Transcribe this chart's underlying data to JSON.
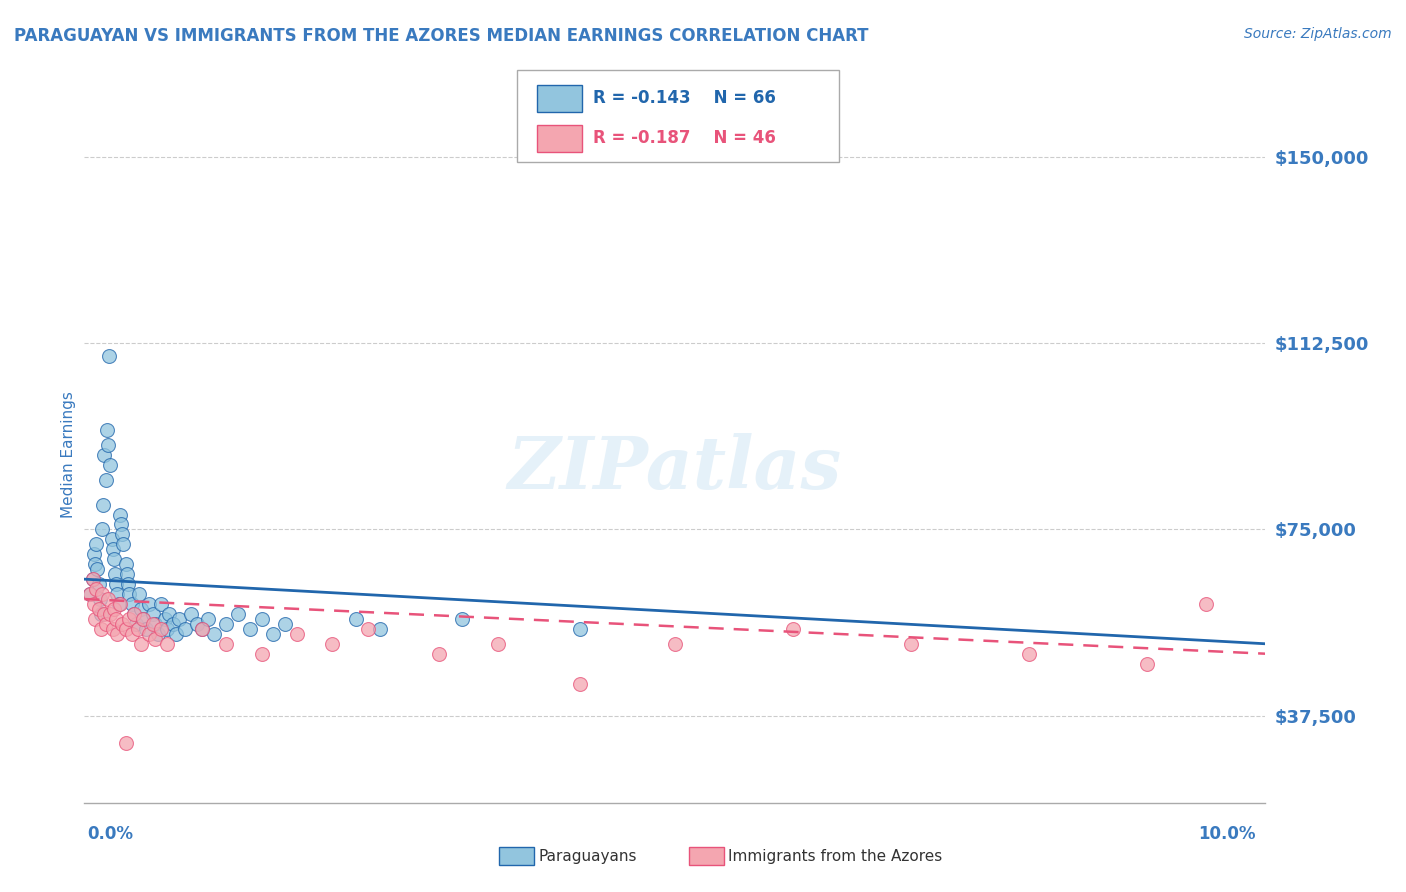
{
  "title": "PARAGUAYAN VS IMMIGRANTS FROM THE AZORES MEDIAN EARNINGS CORRELATION CHART",
  "source": "Source: ZipAtlas.com",
  "ylabel": "Median Earnings",
  "yticks": [
    37500,
    75000,
    112500,
    150000
  ],
  "ytick_labels": [
    "$37,500",
    "$75,000",
    "$112,500",
    "$150,000"
  ],
  "xlim": [
    0.0,
    10.0
  ],
  "ylim": [
    20000,
    160000
  ],
  "series1_label": "Paraguayans",
  "series2_label": "Immigrants from the Azores",
  "legend_r1": "R = -0.143",
  "legend_n1": "N = 66",
  "legend_r2": "R = -0.187",
  "legend_n2": "N = 46",
  "color1": "#92c5de",
  "color2": "#f4a6b0",
  "trendline_color1": "#2166ac",
  "trendline_color2": "#e8537a",
  "title_color": "#3a7abf",
  "axis_label_color": "#3a7abf",
  "ytick_color": "#3a7abf",
  "background_color": "#ffffff",
  "series1_x": [
    0.05,
    0.07,
    0.08,
    0.09,
    0.1,
    0.11,
    0.12,
    0.13,
    0.14,
    0.15,
    0.16,
    0.17,
    0.18,
    0.19,
    0.2,
    0.22,
    0.23,
    0.24,
    0.25,
    0.26,
    0.27,
    0.28,
    0.3,
    0.31,
    0.32,
    0.33,
    0.35,
    0.36,
    0.37,
    0.38,
    0.4,
    0.42,
    0.44,
    0.46,
    0.48,
    0.5,
    0.52,
    0.55,
    0.58,
    0.6,
    0.62,
    0.65,
    0.68,
    0.7,
    0.72,
    0.75,
    0.78,
    0.8,
    0.85,
    0.9,
    0.95,
    1.0,
    1.05,
    1.1,
    1.2,
    1.3,
    1.4,
    1.5,
    1.6,
    1.7,
    2.3,
    2.5,
    3.2,
    4.2,
    0.21,
    0.29
  ],
  "series1_y": [
    62000,
    65000,
    70000,
    68000,
    72000,
    67000,
    64000,
    61000,
    58000,
    75000,
    80000,
    90000,
    85000,
    95000,
    92000,
    88000,
    73000,
    71000,
    69000,
    66000,
    64000,
    62000,
    78000,
    76000,
    74000,
    72000,
    68000,
    66000,
    64000,
    62000,
    60000,
    58000,
    56000,
    62000,
    59000,
    57000,
    55000,
    60000,
    58000,
    56000,
    54000,
    60000,
    57000,
    55000,
    58000,
    56000,
    54000,
    57000,
    55000,
    58000,
    56000,
    55000,
    57000,
    54000,
    56000,
    58000,
    55000,
    57000,
    54000,
    56000,
    57000,
    55000,
    57000,
    55000,
    110000,
    60000
  ],
  "series2_x": [
    0.05,
    0.07,
    0.08,
    0.09,
    0.1,
    0.12,
    0.14,
    0.15,
    0.17,
    0.18,
    0.2,
    0.22,
    0.24,
    0.25,
    0.27,
    0.28,
    0.3,
    0.32,
    0.35,
    0.38,
    0.4,
    0.42,
    0.45,
    0.48,
    0.5,
    0.55,
    0.58,
    0.6,
    0.65,
    0.7,
    1.0,
    1.2,
    1.5,
    1.8,
    2.1,
    2.4,
    3.0,
    3.5,
    4.2,
    5.0,
    6.0,
    7.0,
    8.0,
    9.0,
    9.5,
    0.35
  ],
  "series2_y": [
    62000,
    65000,
    60000,
    57000,
    63000,
    59000,
    55000,
    62000,
    58000,
    56000,
    61000,
    58000,
    55000,
    59000,
    57000,
    54000,
    60000,
    56000,
    55000,
    57000,
    54000,
    58000,
    55000,
    52000,
    57000,
    54000,
    56000,
    53000,
    55000,
    52000,
    55000,
    52000,
    50000,
    54000,
    52000,
    55000,
    50000,
    52000,
    44000,
    52000,
    55000,
    52000,
    50000,
    48000,
    60000,
    32000
  ],
  "trendline1_x0": 0.0,
  "trendline1_y0": 65000,
  "trendline1_x1": 10.0,
  "trendline1_y1": 52000,
  "trendline2_x0": 0.0,
  "trendline2_y0": 61000,
  "trendline2_x1": 10.0,
  "trendline2_y1": 50000
}
